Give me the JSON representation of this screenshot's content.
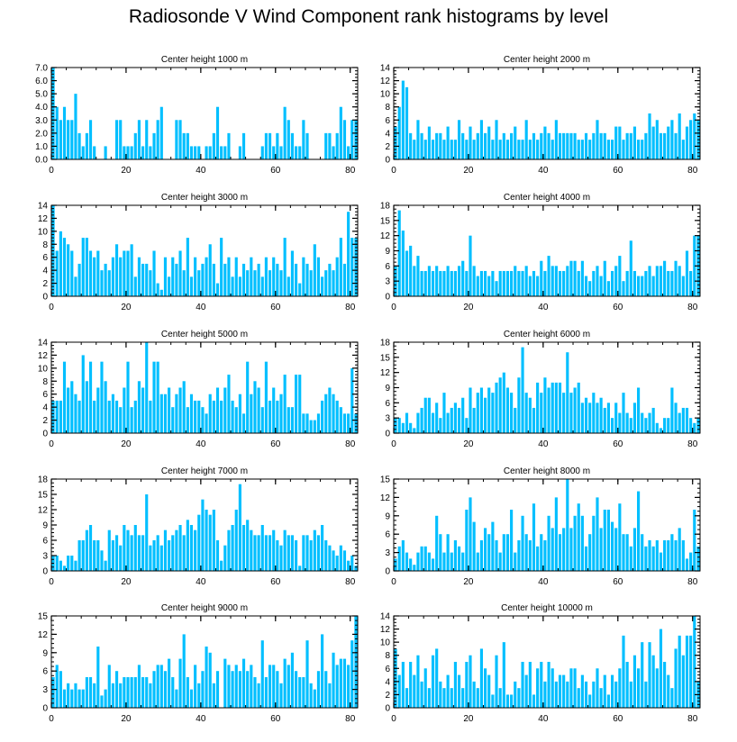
{
  "title": "Radiosonde V Wind Component rank histograms by level",
  "chart_data": [
    {
      "type": "bar",
      "title": "Center height 1000 m",
      "x_start": 0,
      "xlim": [
        0,
        82
      ],
      "xticks": [
        0,
        20,
        40,
        60,
        80
      ],
      "ylim": [
        0,
        7
      ],
      "yticks": [
        0,
        1,
        2,
        3,
        4,
        5,
        6,
        7
      ],
      "ytick_labels": [
        "0.0",
        "1.0",
        "2.0",
        "3.0",
        "4.0",
        "5.0",
        "6.0",
        "7.0"
      ],
      "values": [
        7,
        4,
        3,
        4,
        3,
        3,
        5,
        2,
        1,
        2,
        3,
        1,
        0,
        0,
        1,
        0,
        0,
        3,
        3,
        1,
        1,
        1,
        2,
        3,
        1,
        3,
        1,
        2,
        3,
        4,
        0,
        0,
        0,
        3,
        3,
        2,
        2,
        1,
        1,
        1,
        0,
        1,
        1,
        2,
        4,
        1,
        1,
        2,
        0,
        0,
        1,
        2,
        0,
        0,
        0,
        0,
        1,
        2,
        2,
        1,
        2,
        1,
        4,
        3,
        2,
        1,
        1,
        3,
        2,
        0,
        0,
        0,
        0,
        2,
        2,
        1,
        2,
        4,
        3,
        1,
        3,
        3
      ],
      "series_color": "#00bfff"
    },
    {
      "type": "bar",
      "title": "Center height 2000 m",
      "x_start": 0,
      "xlim": [
        0,
        82
      ],
      "xticks": [
        0,
        20,
        40,
        60,
        80
      ],
      "ylim": [
        0,
        14
      ],
      "yticks": [
        0,
        2,
        4,
        6,
        8,
        10,
        12,
        14
      ],
      "ytick_labels": [
        "0",
        "2",
        "4",
        "6",
        "8",
        "10",
        "12",
        "14"
      ],
      "values": [
        5,
        8,
        12,
        11,
        4,
        3,
        6,
        4,
        3,
        5,
        3,
        4,
        4,
        3,
        5,
        3,
        3,
        6,
        4,
        3,
        5,
        3,
        4,
        6,
        4,
        5,
        3,
        6,
        3,
        4,
        3,
        4,
        5,
        3,
        3,
        6,
        3,
        4,
        3,
        4,
        5,
        4,
        3,
        6,
        4,
        4,
        4,
        4,
        4,
        3,
        3,
        4,
        3,
        4,
        6,
        4,
        4,
        3,
        3,
        5,
        5,
        3,
        4,
        4,
        5,
        3,
        3,
        4,
        7,
        5,
        6,
        4,
        4,
        5,
        6,
        4,
        7,
        3,
        5,
        6,
        7,
        6
      ],
      "series_color": "#00bfff"
    },
    {
      "type": "bar",
      "title": "Center height 3000 m",
      "x_start": 0,
      "xlim": [
        0,
        82
      ],
      "xticks": [
        0,
        20,
        40,
        60,
        80
      ],
      "ylim": [
        0,
        14
      ],
      "yticks": [
        0,
        2,
        4,
        6,
        8,
        10,
        12,
        14
      ],
      "ytick_labels": [
        "0",
        "2",
        "4",
        "6",
        "8",
        "10",
        "12",
        "14"
      ],
      "values": [
        14,
        7,
        10,
        9,
        8,
        7,
        3,
        5,
        9,
        9,
        7,
        6,
        7,
        4,
        5,
        4,
        6,
        8,
        6,
        7,
        7,
        8,
        3,
        6,
        5,
        5,
        4,
        7,
        2,
        1,
        6,
        3,
        6,
        5,
        7,
        4,
        9,
        3,
        6,
        4,
        5,
        6,
        8,
        5,
        2,
        9,
        5,
        6,
        3,
        6,
        3,
        5,
        4,
        6,
        4,
        5,
        3,
        6,
        4,
        6,
        5,
        4,
        9,
        3,
        7,
        5,
        2,
        6,
        5,
        4,
        8,
        6,
        3,
        4,
        5,
        4,
        6,
        9,
        5,
        13,
        9,
        9
      ],
      "series_color": "#00bfff"
    },
    {
      "type": "bar",
      "title": "Center height 4000 m",
      "x_start": 0,
      "xlim": [
        0,
        82
      ],
      "xticks": [
        0,
        20,
        40,
        60,
        80
      ],
      "ylim": [
        0,
        18
      ],
      "yticks": [
        0,
        3,
        6,
        9,
        12,
        15,
        18
      ],
      "ytick_labels": [
        "0",
        "3",
        "6",
        "9",
        "12",
        "15",
        "18"
      ],
      "values": [
        6,
        17,
        13,
        9,
        10,
        6,
        8,
        5,
        5,
        6,
        5,
        6,
        5,
        5,
        6,
        5,
        5,
        6,
        7,
        5,
        12,
        6,
        4,
        5,
        5,
        4,
        5,
        3,
        5,
        5,
        5,
        5,
        6,
        5,
        5,
        6,
        4,
        5,
        4,
        7,
        5,
        8,
        6,
        6,
        5,
        5,
        6,
        7,
        7,
        5,
        7,
        4,
        3,
        5,
        6,
        4,
        7,
        3,
        5,
        6,
        8,
        3,
        5,
        11,
        5,
        4,
        4,
        5,
        6,
        4,
        6,
        6,
        7,
        5,
        5,
        7,
        6,
        4,
        9,
        5,
        12,
        12
      ],
      "series_color": "#00bfff"
    },
    {
      "type": "bar",
      "title": "Center height 5000 m",
      "x_start": 0,
      "xlim": [
        0,
        82
      ],
      "xticks": [
        0,
        20,
        40,
        60,
        80
      ],
      "ylim": [
        0,
        14
      ],
      "yticks": [
        0,
        2,
        4,
        6,
        8,
        10,
        12,
        14
      ],
      "ytick_labels": [
        "0",
        "2",
        "4",
        "6",
        "8",
        "10",
        "12",
        "14"
      ],
      "values": [
        5,
        5,
        5,
        11,
        7,
        8,
        6,
        5,
        12,
        8,
        11,
        5,
        7,
        11,
        8,
        5,
        6,
        5,
        4,
        7,
        11,
        4,
        5,
        8,
        7,
        14,
        5,
        11,
        11,
        6,
        6,
        7,
        4,
        6,
        7,
        8,
        4,
        6,
        5,
        5,
        4,
        3,
        6,
        5,
        7,
        5,
        7,
        9,
        5,
        4,
        6,
        3,
        11,
        6,
        8,
        7,
        4,
        11,
        5,
        7,
        5,
        6,
        9,
        4,
        4,
        9,
        9,
        3,
        3,
        2,
        2,
        3,
        5,
        6,
        7,
        6,
        5,
        4,
        3,
        3,
        10,
        3
      ],
      "series_color": "#00bfff"
    },
    {
      "type": "bar",
      "title": "Center height 6000 m",
      "x_start": 0,
      "xlim": [
        0,
        82
      ],
      "xticks": [
        0,
        20,
        40,
        60,
        80
      ],
      "ylim": [
        0,
        18
      ],
      "yticks": [
        0,
        3,
        6,
        9,
        12,
        15,
        18
      ],
      "ytick_labels": [
        "0",
        "3",
        "6",
        "9",
        "12",
        "15",
        "18"
      ],
      "values": [
        3,
        3,
        2,
        4,
        2,
        1,
        4,
        5,
        7,
        7,
        4,
        6,
        3,
        8,
        4,
        5,
        6,
        5,
        7,
        3,
        9,
        5,
        8,
        9,
        7,
        9,
        8,
        10,
        11,
        12,
        9,
        8,
        5,
        11,
        17,
        8,
        7,
        5,
        10,
        8,
        11,
        9,
        10,
        10,
        10,
        8,
        16,
        8,
        9,
        10,
        6,
        7,
        6,
        8,
        6,
        7,
        5,
        6,
        3,
        6,
        4,
        8,
        4,
        3,
        6,
        9,
        4,
        3,
        4,
        5,
        2,
        1,
        3,
        3,
        9,
        6,
        4,
        5,
        5,
        3,
        2,
        3
      ],
      "series_color": "#00bfff"
    },
    {
      "type": "bar",
      "title": "Center height 7000 m",
      "x_start": 0,
      "xlim": [
        0,
        82
      ],
      "xticks": [
        0,
        20,
        40,
        60,
        80
      ],
      "ylim": [
        0,
        18
      ],
      "yticks": [
        0,
        3,
        6,
        9,
        12,
        15,
        18
      ],
      "ytick_labels": [
        "0",
        "3",
        "6",
        "9",
        "12",
        "15",
        "18"
      ],
      "values": [
        3,
        3,
        2,
        1,
        3,
        3,
        2,
        6,
        6,
        8,
        9,
        6,
        6,
        4,
        2,
        8,
        6,
        7,
        5,
        9,
        8,
        7,
        9,
        7,
        7,
        15,
        5,
        6,
        7,
        5,
        8,
        6,
        7,
        8,
        9,
        7,
        10,
        9,
        8,
        11,
        14,
        12,
        11,
        12,
        6,
        2,
        5,
        8,
        9,
        12,
        17,
        9,
        10,
        8,
        7,
        7,
        9,
        7,
        7,
        8,
        6,
        5,
        8,
        7,
        7,
        6,
        1,
        7,
        7,
        6,
        8,
        7,
        9,
        6,
        5,
        4,
        3,
        5,
        4,
        2,
        3,
        1
      ],
      "series_color": "#00bfff"
    },
    {
      "type": "bar",
      "title": "Center height 8000 m",
      "x_start": 0,
      "xlim": [
        0,
        82
      ],
      "xticks": [
        0,
        20,
        40,
        60,
        80
      ],
      "ylim": [
        0,
        15
      ],
      "yticks": [
        0,
        3,
        6,
        9,
        12,
        15
      ],
      "ytick_labels": [
        "0",
        "3",
        "6",
        "9",
        "12",
        "15"
      ],
      "values": [
        2,
        4,
        5,
        3,
        2,
        1,
        3,
        4,
        4,
        3,
        2,
        9,
        6,
        3,
        6,
        3,
        5,
        4,
        3,
        10,
        12,
        8,
        3,
        5,
        7,
        6,
        8,
        5,
        3,
        6,
        6,
        10,
        3,
        5,
        9,
        6,
        5,
        11,
        4,
        6,
        5,
        9,
        7,
        12,
        6,
        7,
        15,
        7,
        9,
        11,
        9,
        4,
        6,
        9,
        12,
        7,
        10,
        10,
        8,
        7,
        11,
        6,
        6,
        4,
        7,
        13,
        6,
        4,
        5,
        4,
        5,
        3,
        5,
        5,
        6,
        5,
        7,
        5,
        2,
        3,
        10,
        4
      ],
      "series_color": "#00bfff"
    },
    {
      "type": "bar",
      "title": "Center height 9000 m",
      "x_start": 0,
      "xlim": [
        0,
        82
      ],
      "xticks": [
        0,
        20,
        40,
        60,
        80
      ],
      "ylim": [
        0,
        15
      ],
      "yticks": [
        0,
        3,
        6,
        9,
        12,
        15
      ],
      "ytick_labels": [
        "0",
        "3",
        "6",
        "9",
        "12",
        "15"
      ],
      "values": [
        5,
        7,
        6,
        3,
        4,
        3,
        4,
        3,
        3,
        5,
        5,
        4,
        10,
        2,
        3,
        7,
        4,
        6,
        4,
        5,
        5,
        5,
        5,
        7,
        5,
        5,
        4,
        6,
        7,
        7,
        6,
        8,
        5,
        3,
        8,
        12,
        5,
        3,
        7,
        4,
        6,
        10,
        9,
        4,
        6,
        0,
        8,
        7,
        6,
        7,
        6,
        8,
        6,
        7,
        5,
        4,
        11,
        5,
        7,
        7,
        6,
        4,
        8,
        7,
        9,
        6,
        5,
        5,
        11,
        4,
        3,
        6,
        12,
        6,
        4,
        9,
        7,
        8,
        8,
        7,
        11,
        15
      ],
      "series_color": "#00bfff"
    },
    {
      "type": "bar",
      "title": "Center height 10000 m",
      "x_start": 0,
      "xlim": [
        0,
        82
      ],
      "xticks": [
        0,
        20,
        40,
        60,
        80
      ],
      "ylim": [
        0,
        14
      ],
      "yticks": [
        0,
        2,
        4,
        6,
        8,
        10,
        12,
        14
      ],
      "ytick_labels": [
        "0",
        "2",
        "4",
        "6",
        "8",
        "10",
        "12",
        "14"
      ],
      "values": [
        9,
        5,
        7,
        3,
        7,
        5,
        8,
        4,
        6,
        3,
        8,
        9,
        4,
        3,
        5,
        3,
        7,
        5,
        3,
        7,
        8,
        4,
        3,
        9,
        6,
        5,
        2,
        8,
        3,
        10,
        2,
        2,
        4,
        3,
        7,
        5,
        7,
        2,
        6,
        7,
        4,
        7,
        6,
        4,
        5,
        5,
        4,
        6,
        6,
        3,
        5,
        4,
        2,
        4,
        6,
        3,
        5,
        2,
        5,
        4,
        6,
        11,
        7,
        4,
        8,
        6,
        10,
        4,
        10,
        8,
        6,
        12,
        7,
        5,
        3,
        9,
        11,
        8,
        11,
        11,
        14,
        4
      ],
      "series_color": "#00bfff"
    }
  ]
}
